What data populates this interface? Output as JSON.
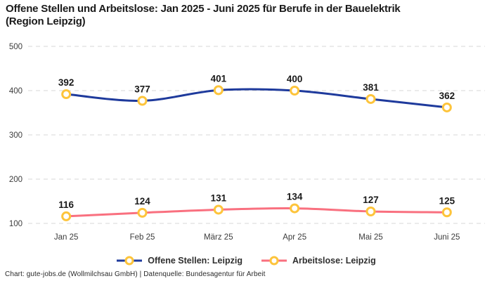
{
  "title_line1": "Offene Stellen und Arbeitslose: Jan 2025 - Juni 2025 für Berufe in der Bauelektrik",
  "title_line2": "(Region Leipzig)",
  "footer": "Chart: gute-jobs.de (Wollmilchsau GmbH) | Datenquelle: Bundesagentur für Arbeit",
  "colors": {
    "series_blue": "#1e3a9c",
    "series_pink": "#f9707f",
    "marker_gold": "#fdc43b",
    "marker_fill": "#ffffff",
    "gridline": "#d7d7d7",
    "axis_text": "#3c3c3c",
    "value_label": "#1a1a1a",
    "background": "#ffffff"
  },
  "chart_data": {
    "type": "line",
    "title": "Offene Stellen und Arbeitslose: Jan 2025 - Juni 2025 für Berufe in der Bauelektrik (Region Leipzig)",
    "categories": [
      "Jan 25",
      "Feb 25",
      "März 25",
      "Apr 25",
      "Mai 25",
      "Juni 25"
    ],
    "series": [
      {
        "name": "Offene Stellen: Leipzig",
        "color": "#1e3a9c",
        "values": [
          392,
          377,
          401,
          400,
          381,
          362
        ]
      },
      {
        "name": "Arbeitslose: Leipzig",
        "color": "#f9707f",
        "values": [
          116,
          124,
          131,
          134,
          127,
          125
        ]
      }
    ],
    "yticks": [
      100,
      200,
      300,
      400,
      500
    ],
    "ylim": [
      100,
      500
    ],
    "xlabel": "",
    "ylabel": "",
    "grid": "horizontal-dashed",
    "legend_position": "bottom",
    "marker": {
      "shape": "circle",
      "stroke": "#fdc43b",
      "fill": "#ffffff"
    },
    "data_labels": true
  }
}
